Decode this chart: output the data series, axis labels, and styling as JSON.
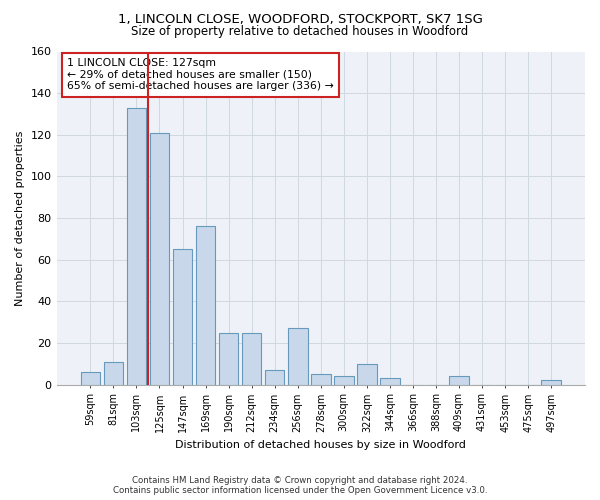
{
  "title1": "1, LINCOLN CLOSE, WOODFORD, STOCKPORT, SK7 1SG",
  "title2": "Size of property relative to detached houses in Woodford",
  "xlabel": "Distribution of detached houses by size in Woodford",
  "ylabel": "Number of detached properties",
  "categories": [
    "59sqm",
    "81sqm",
    "103sqm",
    "125sqm",
    "147sqm",
    "169sqm",
    "190sqm",
    "212sqm",
    "234sqm",
    "256sqm",
    "278sqm",
    "300sqm",
    "322sqm",
    "344sqm",
    "366sqm",
    "388sqm",
    "409sqm",
    "431sqm",
    "453sqm",
    "475sqm",
    "497sqm"
  ],
  "values": [
    6,
    11,
    133,
    121,
    65,
    76,
    25,
    25,
    7,
    27,
    5,
    4,
    10,
    3,
    0,
    0,
    4,
    0,
    0,
    0,
    2
  ],
  "bar_color": "#c8d8ea",
  "bar_edge_color": "#6699bb",
  "vline_color": "#cc2222",
  "vline_index": 2.5,
  "annotation_text": "1 LINCOLN CLOSE: 127sqm\n← 29% of detached houses are smaller (150)\n65% of semi-detached houses are larger (336) →",
  "annotation_box_color": "#ffffff",
  "annotation_box_edge": "#cc2222",
  "ylim": [
    0,
    160
  ],
  "yticks": [
    0,
    20,
    40,
    60,
    80,
    100,
    120,
    140,
    160
  ],
  "grid_color": "#d0d8e0",
  "bg_color": "#eef2f8",
  "footer1": "Contains HM Land Registry data © Crown copyright and database right 2024.",
  "footer2": "Contains public sector information licensed under the Open Government Licence v3.0."
}
